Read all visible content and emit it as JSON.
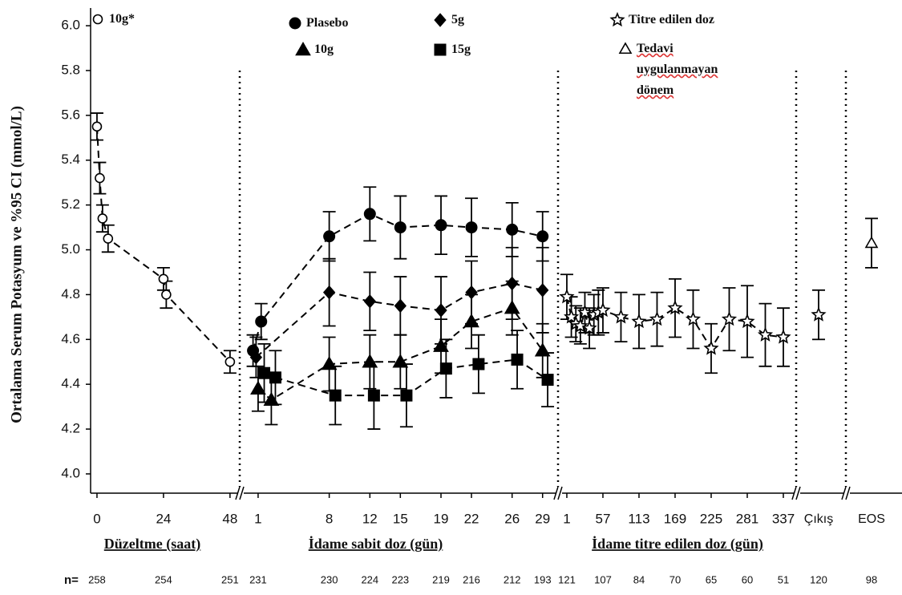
{
  "chart_data": {
    "type": "line",
    "ylabel": "Ortalama Serum Potasyum ve %95 CI (mmol/L)",
    "ylim": [
      3.914,
      6.079
    ],
    "yticks": [
      {
        "value": 4,
        "label": "4.0"
      },
      4.2,
      4.4,
      4.6,
      4.8,
      {
        "value": 5,
        "label": "5.0"
      },
      5.2,
      5.4,
      5.6,
      5.8,
      {
        "value": 6,
        "label": "6.0"
      }
    ],
    "color": "#000000",
    "n_label": "n=",
    "panels": [
      {
        "xlabel": "Düzeltme (saat)",
        "xlim": [
          -2.3,
          51.8
        ],
        "xticks": [
          0,
          24,
          48
        ],
        "n": [
          258,
          254,
          251
        ],
        "series": [
          {
            "name": "10g*",
            "marker": "circle-open",
            "x": [
              0,
              1,
              2,
              4,
              24,
              25,
              48
            ],
            "values": [
              5.55,
              5.32,
              5.14,
              5.05,
              4.87,
              4.8,
              4.5
            ],
            "errors": [
              0.06,
              0.07,
              0.06,
              0.06,
              0.05,
              0.06,
              0.05
            ]
          }
        ]
      },
      {
        "xlabel": "İdame sabit doz (gün)",
        "xlim": [
          -0.73,
          30.6
        ],
        "xticks": [
          1,
          8,
          12,
          15,
          19,
          22,
          26,
          29
        ],
        "n": [
          231,
          230,
          224,
          223,
          219,
          216,
          212,
          193
        ],
        "series": [
          {
            "name": "Plasebo",
            "marker": "circle",
            "x": [
              0.5,
              1.3,
              8,
              12,
              15,
              19,
              22,
              26,
              29
            ],
            "values": [
              4.55,
              4.68,
              5.06,
              5.16,
              5.1,
              5.11,
              5.1,
              5.09,
              5.06
            ],
            "errors": [
              0.07,
              0.08,
              0.11,
              0.12,
              0.14,
              0.13,
              0.13,
              0.12,
              0.11
            ]
          },
          {
            "name": "5g",
            "marker": "diamond",
            "x": [
              0.8,
              8,
              12,
              15,
              19,
              22,
              26,
              29
            ],
            "values": [
              4.52,
              4.81,
              4.77,
              4.75,
              4.73,
              4.81,
              4.85,
              4.82
            ],
            "errors": [
              0.09,
              0.15,
              0.13,
              0.13,
              0.15,
              0.14,
              0.16,
              0.19
            ]
          },
          {
            "name": "10g",
            "marker": "triangle",
            "x": [
              1,
              2.3,
              8,
              12,
              15,
              19,
              22,
              26,
              29
            ],
            "values": [
              4.38,
              4.33,
              4.49,
              4.5,
              4.5,
              4.57,
              4.68,
              4.74,
              4.55
            ],
            "errors": [
              0.1,
              0.11,
              0.12,
              0.12,
              0.12,
              0.12,
              0.12,
              0.12,
              0.12
            ]
          },
          {
            "name": "15g",
            "marker": "square",
            "x": [
              1.6,
              2.7,
              8.6,
              12.4,
              15.6,
              19.5,
              22.7,
              26.5,
              29.5
            ],
            "values": [
              4.45,
              4.43,
              4.35,
              4.35,
              4.35,
              4.47,
              4.49,
              4.51,
              4.42
            ],
            "errors": [
              0.13,
              0.12,
              0.13,
              0.15,
              0.14,
              0.13,
              0.13,
              0.13,
              0.12
            ]
          }
        ]
      },
      {
        "xlabel": "İdame titre edilen doz (gün)",
        "xlim": [
          -11.4,
          356.9
        ],
        "xticks": [
          1,
          57,
          113,
          169,
          225,
          281,
          337
        ],
        "n": [
          121,
          107,
          84,
          70,
          65,
          60,
          51
        ],
        "series": [
          {
            "name": "Titre edilen doz",
            "marker": "star-open",
            "x": [
              1,
              8,
              15,
              22,
              29,
              36,
              43,
              50,
              57,
              85,
              113,
              141,
              169,
              197,
              225,
              253,
              281,
              309,
              337
            ],
            "values": [
              4.79,
              4.7,
              4.67,
              4.66,
              4.72,
              4.65,
              4.71,
              4.72,
              4.73,
              4.7,
              4.68,
              4.69,
              4.74,
              4.69,
              4.56,
              4.69,
              4.68,
              4.62,
              4.61
            ],
            "errors": [
              0.1,
              0.09,
              0.08,
              0.08,
              0.09,
              0.09,
              0.09,
              0.1,
              0.1,
              0.11,
              0.12,
              0.12,
              0.13,
              0.13,
              0.11,
              0.14,
              0.16,
              0.14,
              0.13
            ]
          }
        ]
      },
      {
        "categories": [
          "Çıkış"
        ],
        "n": [
          120
        ],
        "series": [
          {
            "marker": "star-open",
            "values": [
              4.71
            ],
            "errors": [
              0.11
            ]
          }
        ]
      },
      {
        "categories": [
          "EOS"
        ],
        "n": [
          98
        ],
        "series": [
          {
            "name": "Tedavi uygulanmayan dönem",
            "marker": "triangle-open",
            "values": [
              5.03
            ],
            "errors": [
              0.11
            ]
          }
        ]
      }
    ]
  }
}
